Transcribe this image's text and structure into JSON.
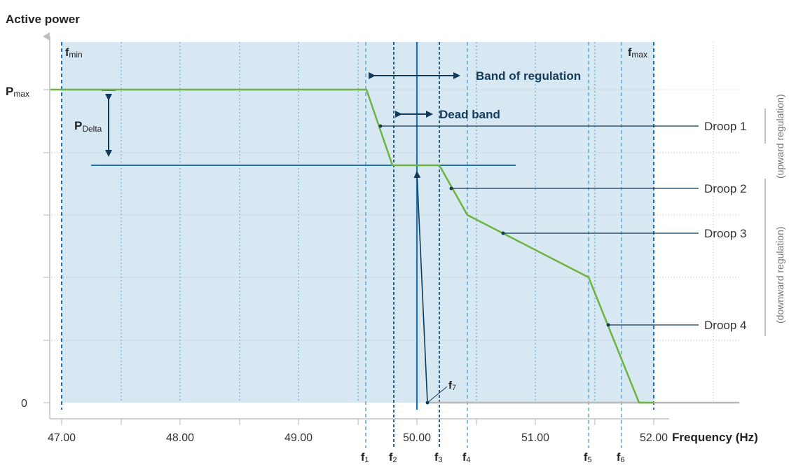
{
  "title": "Active power",
  "axis": {
    "x_label": "Frequency (Hz)",
    "x_ticks": [
      "47.00",
      "48.00",
      "49.00",
      "50.00",
      "51.00",
      "52.00"
    ],
    "y_zero": "0",
    "pmax_main": "P",
    "pmax_sub": "max"
  },
  "labels": {
    "fmin_main": "f",
    "fmin_sub": "min",
    "fmax_main": "f",
    "fmax_sub": "max",
    "pdelta_main": "P",
    "pdelta_sub": "Delta",
    "band_of_regulation": "Band of regulation",
    "dead_band": "Dead band",
    "f7_main": "f",
    "f7_sub": "7"
  },
  "droops": [
    "Droop 1",
    "Droop 2",
    "Droop 3",
    "Droop 4"
  ],
  "side_labels": {
    "upward": "(upward regulation)",
    "downward": "(downward regulation)"
  },
  "f_marks": [
    {
      "main": "f",
      "sub": "1"
    },
    {
      "main": "f",
      "sub": "2"
    },
    {
      "main": "f",
      "sub": "3"
    },
    {
      "main": "f",
      "sub": "4"
    },
    {
      "main": "f",
      "sub": "5"
    },
    {
      "main": "f",
      "sub": "6"
    }
  ],
  "colors": {
    "region_fill": "#d8e8f2",
    "curve_green": "#6cb33f",
    "dark_blue": "#123a5a",
    "mid_blue": "#1f73b3",
    "light_blue_dash": "#5aa8d6",
    "grid_gray": "#bbbbbb",
    "zero_line_gray": "#b8b8b8"
  }
}
